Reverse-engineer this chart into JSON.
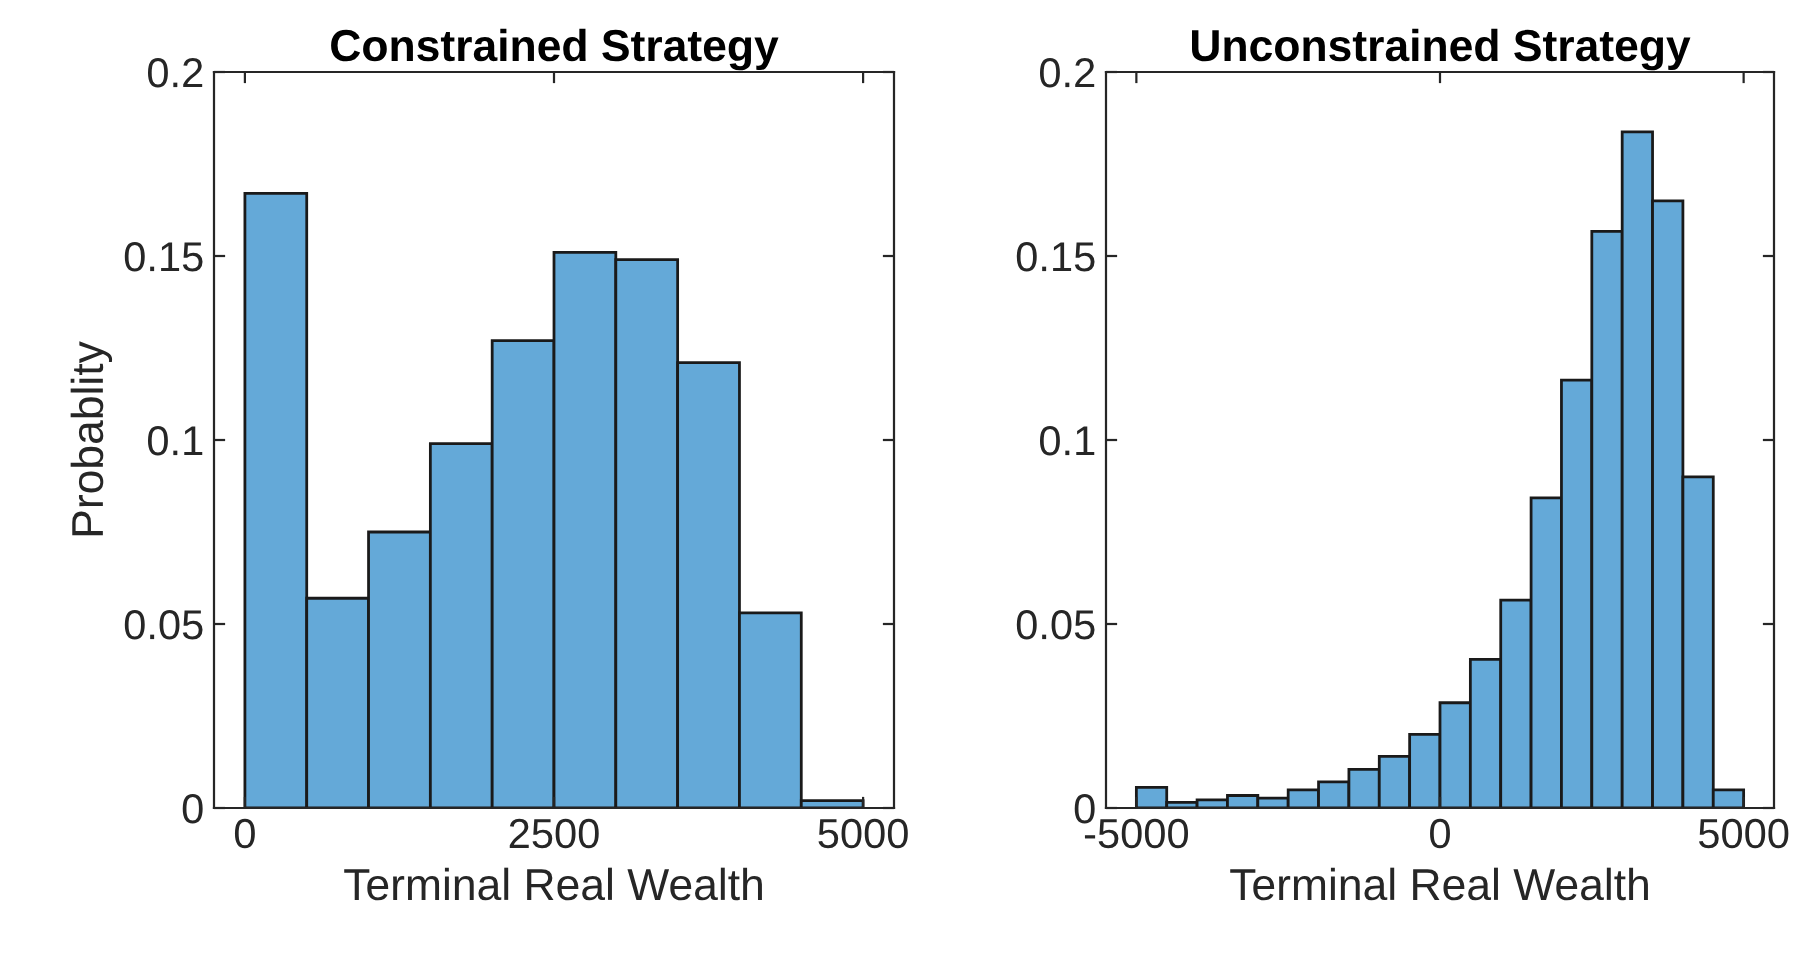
{
  "chart_data": [
    {
      "type": "histogram",
      "title": "Constrained Strategy",
      "xlabel": "Terminal Real Wealth",
      "ylabel": "Probablity",
      "color": "#64a9d8",
      "bins": [
        0,
        500,
        1000,
        1500,
        2000,
        2500,
        3000,
        3500,
        4000,
        4500,
        5000
      ],
      "values": [
        0.167,
        0.057,
        0.075,
        0.099,
        0.127,
        0.151,
        0.149,
        0.121,
        0.053,
        0.002
      ],
      "xlim": [
        -250,
        5250
      ],
      "xticks": [
        0,
        2500,
        5000
      ],
      "ylim": [
        0,
        0.2
      ],
      "yticks": [
        0,
        0.05,
        0.1,
        0.15,
        0.2
      ],
      "grid": false,
      "legend": false
    },
    {
      "type": "histogram",
      "title": "Unconstrained Strategy",
      "xlabel": "Terminal Real Wealth",
      "color": "#64a9d8",
      "bins": [
        -5000,
        -4500,
        -4000,
        -3500,
        -3000,
        -2500,
        -2000,
        -1500,
        -1000,
        -500,
        0,
        500,
        1000,
        1500,
        2000,
        2500,
        3000,
        3500,
        4000,
        4500,
        5000
      ],
      "values": [
        0.0056,
        0.0015,
        0.0022,
        0.0034,
        0.0027,
        0.0049,
        0.0071,
        0.0105,
        0.014,
        0.02,
        0.0286,
        0.0404,
        0.0565,
        0.0843,
        0.1163,
        0.1567,
        0.1837,
        0.165,
        0.09,
        0.0049
      ],
      "xlim": [
        -5500,
        5500
      ],
      "xticks": [
        -5000,
        0,
        5000
      ],
      "ylim": [
        0,
        0.2
      ],
      "yticks": [
        0,
        0.05,
        0.1,
        0.15,
        0.2
      ],
      "grid": false,
      "legend": false
    }
  ]
}
